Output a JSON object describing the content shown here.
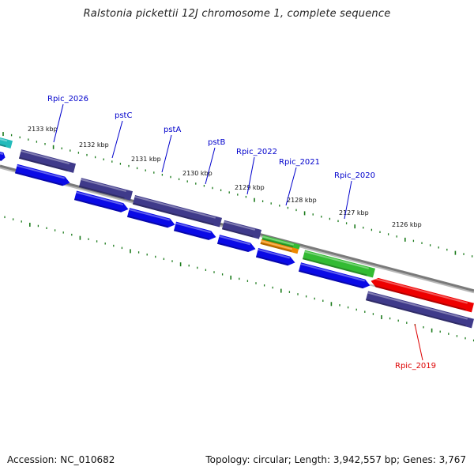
{
  "title": "Ralstonia pickettii 12J chromosome 1, complete sequence",
  "accession": "Accession: NC_010682",
  "topology": "Topology: circular; Length: 3,942,557 bp; Genes: 3,767",
  "colors": {
    "backbone": "#7a7a7a",
    "tick": "#1a7a1a",
    "cds_blue": "#0a0ae6",
    "gene_purple": "#3f3a8a",
    "label_blue": "#0000cc",
    "label_red": "#dd0000",
    "cyan": "#22bbbb",
    "green": "#33bb33",
    "orange": "#ee8800",
    "red": "#ee0000"
  },
  "scale_labels": [
    "2133 kbp",
    "2132 kbp",
    "2131 kbp",
    "2130 kbp",
    "2129 kbp",
    "2128 kbp",
    "2127 kbp",
    "2126 kbp"
  ],
  "gene_labels": [
    {
      "name": "Rpic_2026",
      "color": "blue"
    },
    {
      "name": "pstC",
      "color": "blue"
    },
    {
      "name": "pstA",
      "color": "blue"
    },
    {
      "name": "pstB",
      "color": "blue"
    },
    {
      "name": "Rpic_2022",
      "color": "blue"
    },
    {
      "name": "Rpic_2021",
      "color": "blue"
    },
    {
      "name": "Rpic_2020",
      "color": "blue"
    },
    {
      "name": "Rpic_2019",
      "color": "red"
    }
  ]
}
